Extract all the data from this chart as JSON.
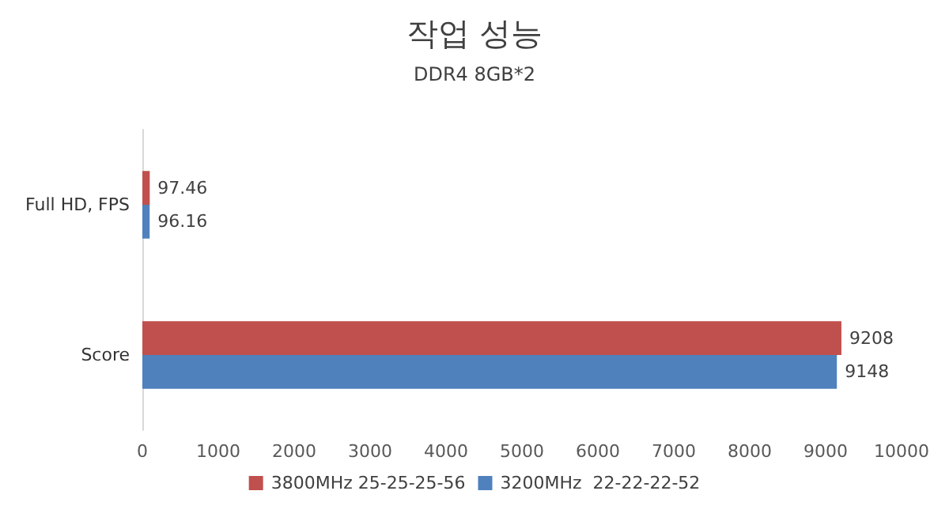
{
  "chart_data": {
    "type": "bar",
    "orientation": "horizontal",
    "title": "작업 성능",
    "subtitle": "DDR4 8GB*2",
    "categories": [
      "Full HD, FPS",
      "Score"
    ],
    "series": [
      {
        "name": "3800MHz 25-25-25-56",
        "color": "#c0504d",
        "values": [
          97.46,
          9208
        ]
      },
      {
        "name": "3200MHz  22-22-22-52",
        "color": "#4f81bd",
        "values": [
          96.16,
          9148
        ]
      }
    ],
    "xlim": [
      0,
      10000
    ],
    "xticks": [
      0,
      1000,
      2000,
      3000,
      4000,
      5000,
      6000,
      7000,
      8000,
      9000,
      10000
    ],
    "data_labels": true,
    "grid": false,
    "legend": "bottom"
  }
}
